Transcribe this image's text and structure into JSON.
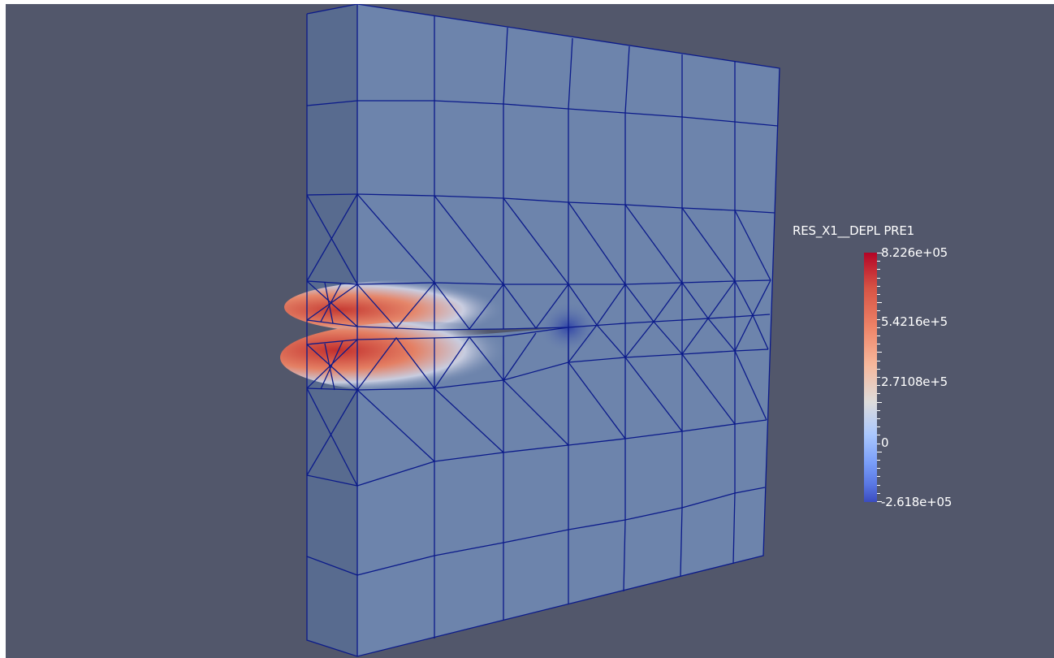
{
  "colors": {
    "background": "#52576b",
    "mesh_face": "#6d84ac",
    "mesh_side": "#586b8f",
    "mesh_edge": "#0b1a8a",
    "high": "#b40426",
    "low": "#3b4cc0"
  },
  "color_legend": {
    "title": "RES_X1__DEPL PRE1",
    "max_label": "8.226e+05",
    "label_2": "5.4216e+5",
    "label_3": "2.7108e+5",
    "label_4": "0",
    "min_label": "-2.618e+05",
    "range": [
      -261800,
      822600
    ],
    "labeled_values": [
      822600,
      542160,
      271080,
      0,
      -261800
    ]
  }
}
